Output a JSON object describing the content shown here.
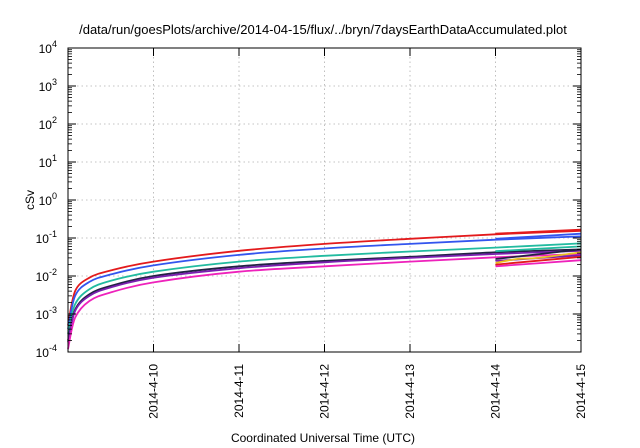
{
  "chart_data": {
    "type": "line",
    "title": "/data/run/goesPlots/archive/2014-04-15/flux/../bryn/7daysEarthDataAccumulated.plot",
    "xlabel": "Coordinated Universal Time (UTC)",
    "ylabel": "cSv",
    "x_scale": "date",
    "y_scale": "log",
    "xlim": [
      "2014-04-09T00:00",
      "2014-04-15T00:00"
    ],
    "ylim": [
      0.0001,
      10000
    ],
    "x_ticks": [
      "2014-4-10",
      "2014-4-11",
      "2014-4-12",
      "2014-4-13",
      "2014-4-14",
      "2014-4-15"
    ],
    "y_ticks": [
      {
        "base": "10",
        "exp": "-4",
        "value": 0.0001
      },
      {
        "base": "10",
        "exp": "-3",
        "value": 0.001
      },
      {
        "base": "10",
        "exp": "-2",
        "value": 0.01
      },
      {
        "base": "10",
        "exp": "-1",
        "value": 0.1
      },
      {
        "base": "10",
        "exp": "0",
        "value": 1
      },
      {
        "base": "10",
        "exp": "1",
        "value": 10
      },
      {
        "base": "10",
        "exp": "2",
        "value": 100
      },
      {
        "base": "10",
        "exp": "3",
        "value": 1000
      },
      {
        "base": "10",
        "exp": "4",
        "value": 10000
      }
    ],
    "grid": true,
    "legend": "none",
    "series": [
      {
        "color": "#e31a1c",
        "x": [
          "2014-04-09T00:00",
          "2014-04-09T02:00",
          "2014-04-09T06:00",
          "2014-04-09T12:00",
          "2014-04-10T00:00",
          "2014-04-11T00:00",
          "2014-04-12T00:00",
          "2014-04-13T00:00",
          "2014-04-14T00:00",
          "2014-04-15T00:00"
        ],
        "y": [
          0.0005,
          0.004,
          0.009,
          0.014,
          0.024,
          0.046,
          0.07,
          0.095,
          0.125,
          0.155
        ]
      },
      {
        "color": "#3355ee",
        "x": [
          "2014-04-09T00:00",
          "2014-04-09T02:00",
          "2014-04-09T06:00",
          "2014-04-09T12:00",
          "2014-04-10T00:00",
          "2014-04-11T00:00",
          "2014-04-12T00:00",
          "2014-04-13T00:00",
          "2014-04-14T00:00",
          "2014-04-15T00:00"
        ],
        "y": [
          0.0004,
          0.003,
          0.007,
          0.011,
          0.019,
          0.036,
          0.053,
          0.07,
          0.09,
          0.11
        ]
      },
      {
        "color": "#22bba0",
        "x": [
          "2014-04-09T00:00",
          "2014-04-09T02:00",
          "2014-04-09T06:00",
          "2014-04-09T12:00",
          "2014-04-10T00:00",
          "2014-04-11T00:00",
          "2014-04-12T00:00",
          "2014-04-13T00:00",
          "2014-04-14T00:00",
          "2014-04-15T00:00"
        ],
        "y": [
          0.0003,
          0.0018,
          0.0045,
          0.0075,
          0.013,
          0.024,
          0.034,
          0.044,
          0.056,
          0.072
        ]
      },
      {
        "color": "#222244",
        "x": [
          "2014-04-09T00:00",
          "2014-04-09T02:00",
          "2014-04-09T06:00",
          "2014-04-09T12:00",
          "2014-04-10T00:00",
          "2014-04-11T00:00",
          "2014-04-12T00:00",
          "2014-04-13T00:00",
          "2014-04-14T00:00",
          "2014-04-15T00:00"
        ],
        "y": [
          0.0002,
          0.0013,
          0.0033,
          0.0055,
          0.01,
          0.018,
          0.025,
          0.032,
          0.042,
          0.05
        ]
      },
      {
        "color": "#7a1fb0",
        "x": [
          "2014-04-09T00:00",
          "2014-04-09T02:00",
          "2014-04-09T06:00",
          "2014-04-09T12:00",
          "2014-04-10T00:00",
          "2014-04-11T00:00",
          "2014-04-12T00:00",
          "2014-04-13T00:00",
          "2014-04-14T00:00",
          "2014-04-15T00:00"
        ],
        "y": [
          0.00018,
          0.0012,
          0.003,
          0.005,
          0.009,
          0.016,
          0.023,
          0.03,
          0.038,
          0.046
        ]
      },
      {
        "color": "#ee22bb",
        "x": [
          "2014-04-09T00:00",
          "2014-04-09T02:00",
          "2014-04-09T06:00",
          "2014-04-09T12:00",
          "2014-04-10T00:00",
          "2014-04-11T00:00",
          "2014-04-12T00:00",
          "2014-04-13T00:00",
          "2014-04-14T00:00",
          "2014-04-15T00:00"
        ],
        "y": [
          0.00012,
          0.0008,
          0.0022,
          0.0037,
          0.0068,
          0.013,
          0.018,
          0.024,
          0.031,
          0.038
        ]
      },
      {
        "color": "#e31a1c",
        "x": [
          "2014-04-14T00:00",
          "2014-04-15T00:00"
        ],
        "y": [
          0.13,
          0.165
        ]
      },
      {
        "color": "#3355ee",
        "x": [
          "2014-04-14T00:00",
          "2014-04-15T00:00"
        ],
        "y": [
          0.095,
          0.13
        ]
      },
      {
        "color": "#22bba0",
        "x": [
          "2014-04-14T00:00",
          "2014-04-15T00:00"
        ],
        "y": [
          0.045,
          0.06
        ]
      },
      {
        "color": "#222244",
        "x": [
          "2014-04-14T00:00",
          "2014-04-15T00:00"
        ],
        "y": [
          0.028,
          0.05
        ]
      },
      {
        "color": "#7a1fb0",
        "x": [
          "2014-04-14T00:00",
          "2014-04-15T00:00"
        ],
        "y": [
          0.025,
          0.035
        ]
      },
      {
        "color": "#ee22bb",
        "x": [
          "2014-04-14T00:00",
          "2014-04-15T00:00"
        ],
        "y": [
          0.018,
          0.026
        ]
      },
      {
        "color": "#e8c020",
        "x": [
          "2014-04-14T00:00",
          "2014-04-14T06:00",
          "2014-04-14T12:00",
          "2014-04-15T00:00"
        ],
        "y": [
          0.022,
          0.028,
          0.03,
          0.042
        ]
      },
      {
        "color": "#e31a1c",
        "x": [
          "2014-04-14T00:00",
          "2014-04-15T00:00"
        ],
        "y": [
          0.02,
          0.032
        ]
      }
    ]
  }
}
